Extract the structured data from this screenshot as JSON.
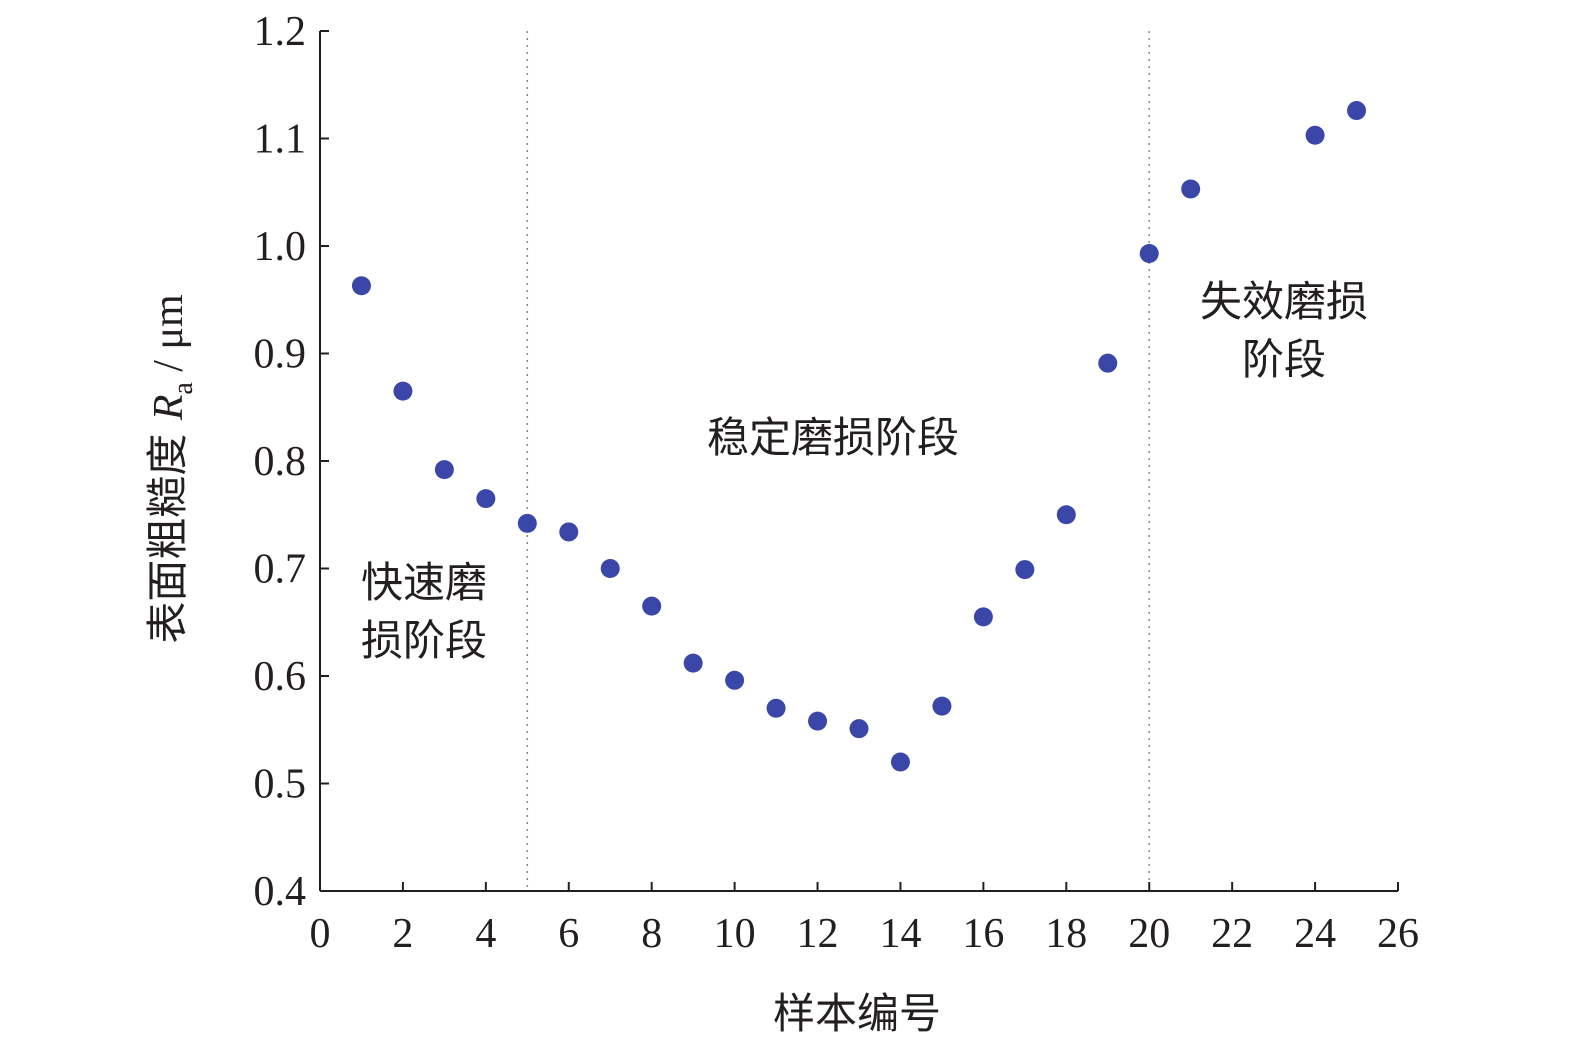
{
  "chart_data": {
    "type": "scatter",
    "xlabel": "样本编号",
    "ylabel_prefix": "表面粗糙度 ",
    "ylabel_symbol": "R",
    "ylabel_subscript": "a",
    "ylabel_suffix": " / μm",
    "xlim": [
      0,
      26
    ],
    "ylim": [
      0.4,
      1.2
    ],
    "x_ticks": [
      0,
      2,
      4,
      6,
      8,
      10,
      12,
      14,
      16,
      18,
      20,
      22,
      24,
      26
    ],
    "y_ticks": [
      "0.4",
      "0.5",
      "0.6",
      "0.7",
      "0.8",
      "0.9",
      "1.0",
      "1.1",
      "1.2"
    ],
    "grid": false,
    "marker_color": "#3b47a8",
    "series": [
      {
        "x": [
          1,
          2,
          3,
          4,
          5,
          6,
          7,
          8,
          9,
          10,
          11,
          12,
          13,
          14,
          15,
          16,
          17,
          18,
          19,
          20,
          21,
          24,
          25
        ],
        "y": [
          0.963,
          0.865,
          0.792,
          0.765,
          0.742,
          0.734,
          0.7,
          0.665,
          0.612,
          0.596,
          0.57,
          0.558,
          0.551,
          0.52,
          0.572,
          0.655,
          0.699,
          0.75,
          0.891,
          0.993,
          1.053,
          1.103,
          1.126
        ]
      }
    ],
    "phase_dividers_x": [
      5,
      20
    ],
    "annotations": {
      "phase1": [
        "快速磨",
        "损阶段"
      ],
      "phase2": [
        "稳定磨损阶段"
      ],
      "phase3": [
        "失效磨损",
        "阶段"
      ]
    }
  }
}
